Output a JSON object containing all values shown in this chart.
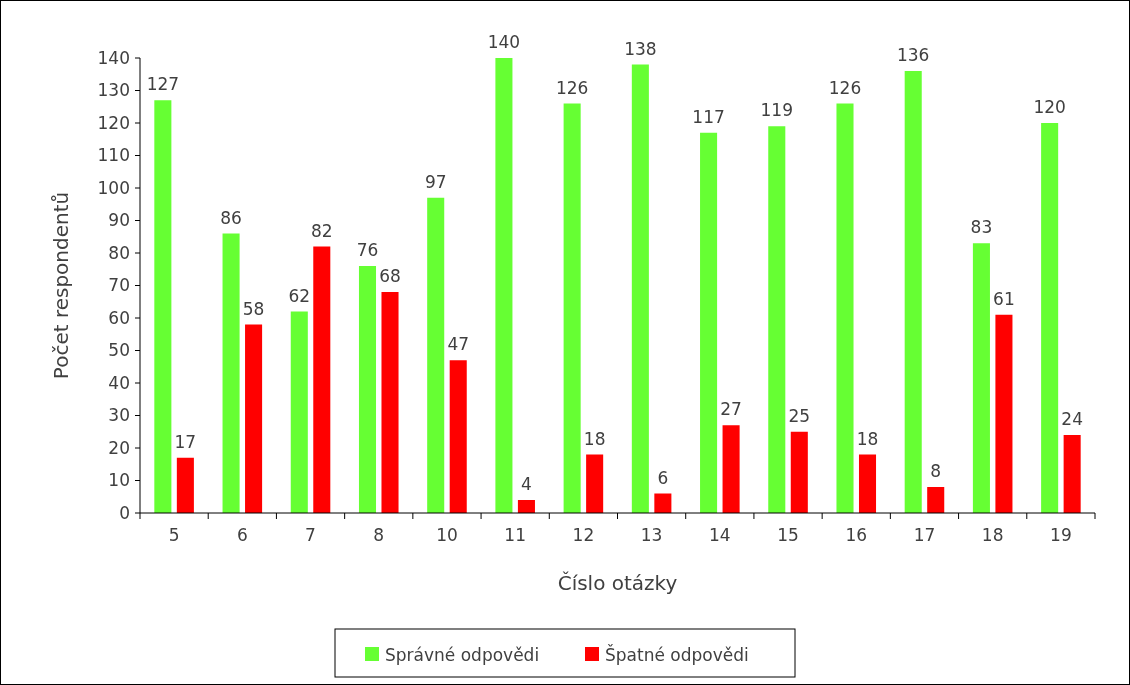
{
  "chart_data": {
    "type": "bar",
    "xlabel": "Číslo otázky",
    "ylabel": "Počet respondentů",
    "categories": [
      "5",
      "6",
      "7",
      "8",
      "10",
      "11",
      "12",
      "13",
      "14",
      "15",
      "16",
      "17",
      "18",
      "19"
    ],
    "series": [
      {
        "name": "Správné odpovědi",
        "color": "#66ff33",
        "values": [
          127,
          86,
          62,
          76,
          97,
          140,
          126,
          138,
          117,
          119,
          126,
          136,
          83,
          120
        ]
      },
      {
        "name": "Špatné odpovědi",
        "color": "#ff0000",
        "values": [
          17,
          58,
          82,
          68,
          47,
          4,
          18,
          6,
          27,
          25,
          18,
          8,
          61,
          24
        ]
      }
    ],
    "ylim": [
      0,
      140
    ],
    "yticks": [
      0,
      10,
      20,
      30,
      40,
      50,
      60,
      70,
      80,
      90,
      100,
      110,
      120,
      130,
      140
    ],
    "data_labels": true,
    "grid": false,
    "legend": "bottom"
  }
}
